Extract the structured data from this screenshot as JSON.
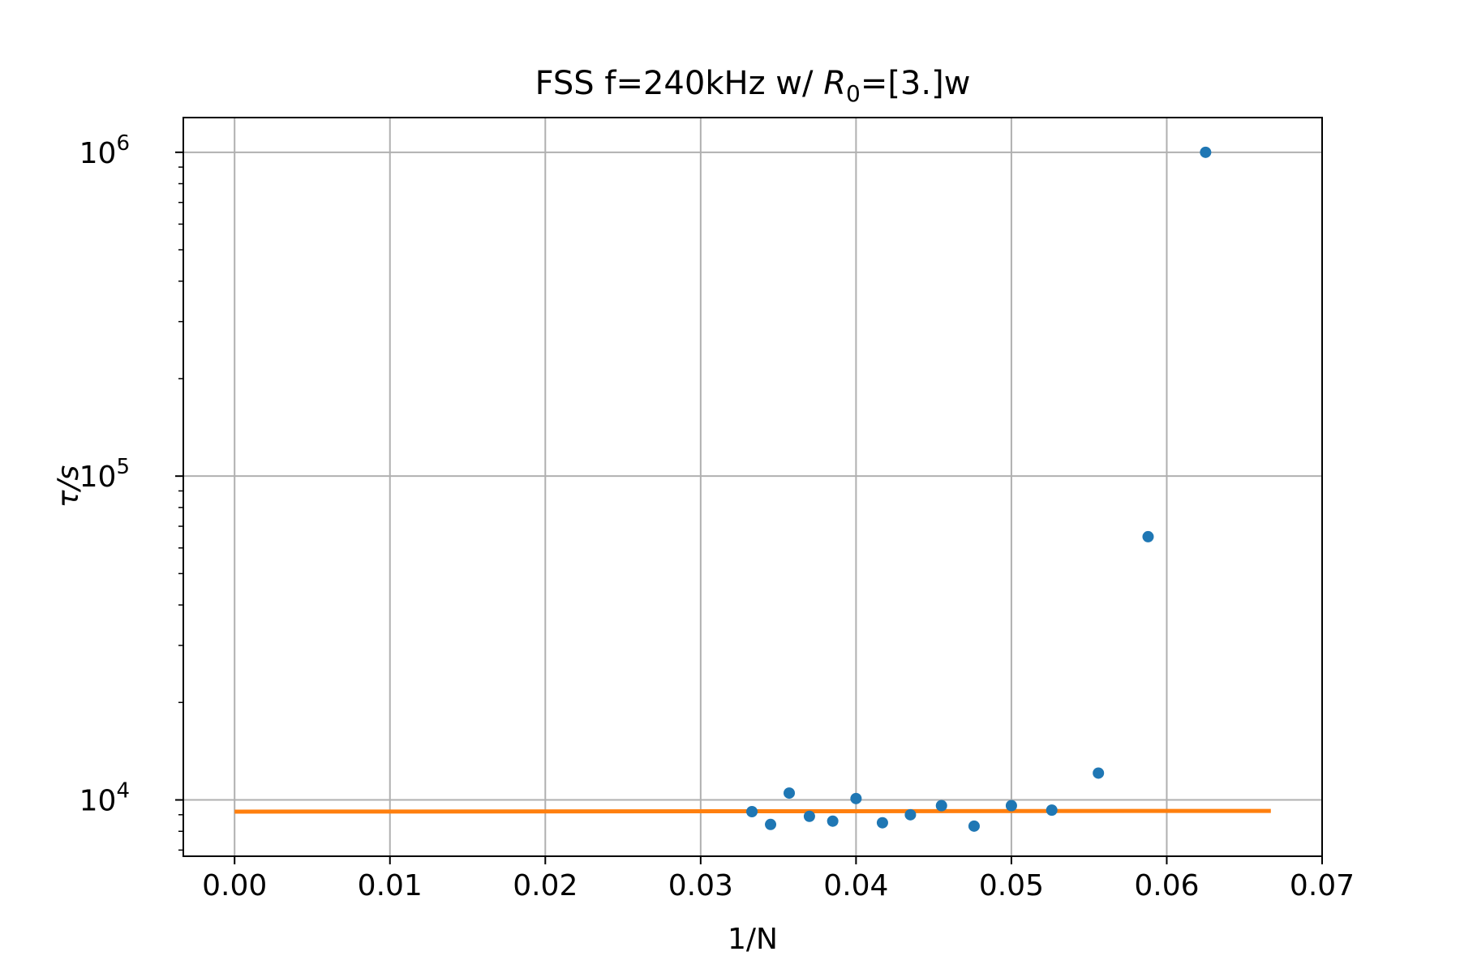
{
  "chart_data": {
    "type": "scatter",
    "title_main": "FSS f=240kHz w/ ",
    "title_math_var": "R",
    "title_math_sub": "0",
    "title_tail": "=[3.]w",
    "xlabel": "1/N",
    "ylabel": "τ/s",
    "x_scale": "linear",
    "y_scale": "log",
    "xlim": [
      -0.0033,
      0.07
    ],
    "ylim": [
      6700,
      1280000
    ],
    "grid": true,
    "x_ticks": [
      0.0,
      0.01,
      0.02,
      0.03,
      0.04,
      0.05,
      0.06,
      0.07
    ],
    "x_tick_labels": [
      "0.00",
      "0.01",
      "0.02",
      "0.03",
      "0.04",
      "0.05",
      "0.06",
      "0.07"
    ],
    "y_ticks": [
      {
        "value": 10000,
        "base": "10",
        "exp": "4"
      },
      {
        "value": 100000,
        "base": "10",
        "exp": "5"
      },
      {
        "value": 1000000,
        "base": "10",
        "exp": "6"
      }
    ],
    "series": [
      {
        "kind": "scatter",
        "color": "#1f77b4",
        "x": [
          0.0333,
          0.0345,
          0.0357,
          0.037,
          0.0385,
          0.04,
          0.0417,
          0.0435,
          0.0455,
          0.0476,
          0.05,
          0.0526,
          0.0556,
          0.0588,
          0.0625
        ],
        "y": [
          9200,
          8400,
          10500,
          8900,
          8600,
          10100,
          8500,
          9000,
          9600,
          8300,
          9600,
          9300,
          12100,
          65000,
          1000000
        ]
      },
      {
        "kind": "line",
        "color": "#ff7f0e",
        "x": [
          0.0,
          0.0667
        ],
        "y": [
          9200,
          9250
        ]
      }
    ]
  }
}
